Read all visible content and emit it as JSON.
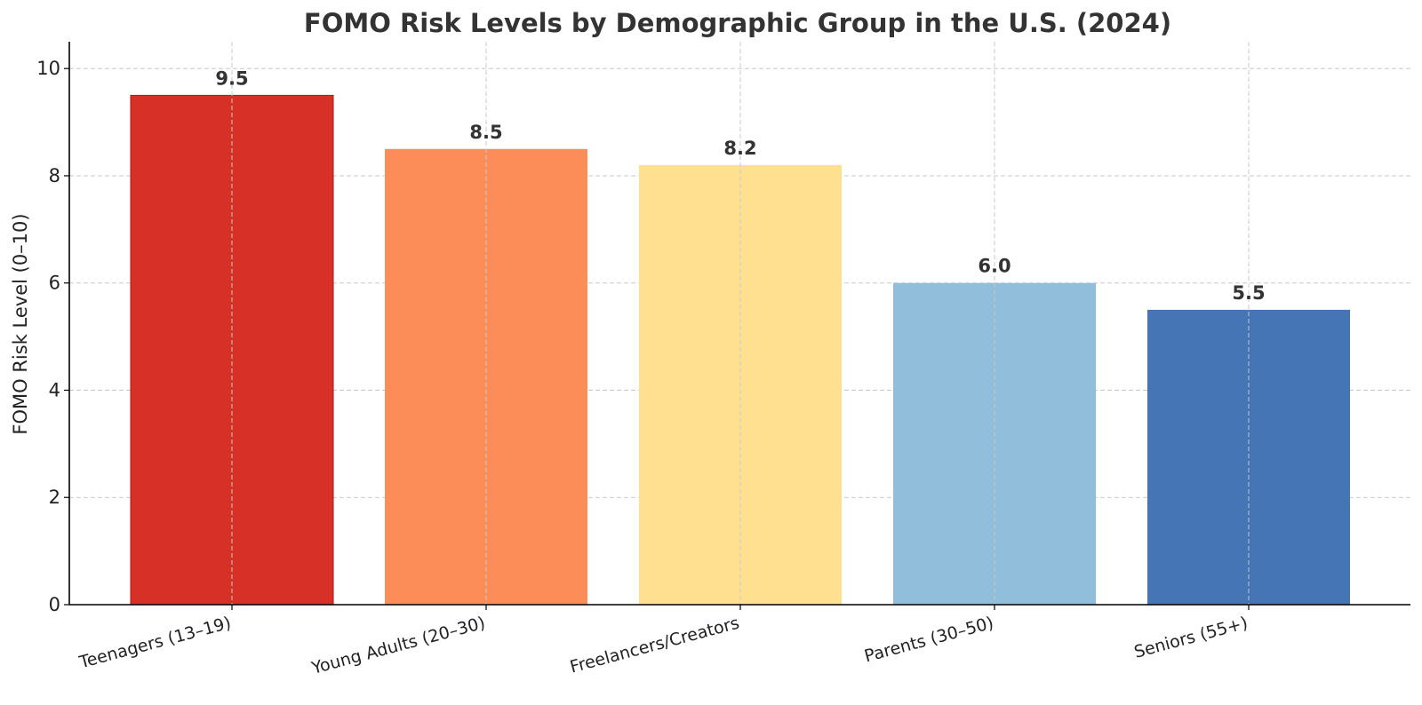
{
  "chart_data": {
    "type": "bar",
    "title": "FOMO Risk Levels by Demographic Group in the U.S. (2024)",
    "xlabel": "",
    "ylabel": "FOMO Risk Level (0–10)",
    "categories": [
      "Teenagers (13–19)",
      "Young Adults (20–30)",
      "Freelancers/Creators",
      "Parents (30–50)",
      "Seniors (55+)"
    ],
    "values": [
      9.5,
      8.5,
      8.2,
      6.0,
      5.5
    ],
    "value_labels": [
      "9.5",
      "8.5",
      "8.2",
      "6.0",
      "5.5"
    ],
    "colors": [
      "#d73027",
      "#fc8d59",
      "#fee090",
      "#91bfdb",
      "#4575b4"
    ],
    "ylim": [
      0,
      10.5
    ],
    "yticks": [
      0,
      2,
      4,
      6,
      8,
      10
    ],
    "ytick_labels": [
      "0",
      "2",
      "4",
      "6",
      "8",
      "10"
    ],
    "grid": true,
    "legend": "none"
  }
}
